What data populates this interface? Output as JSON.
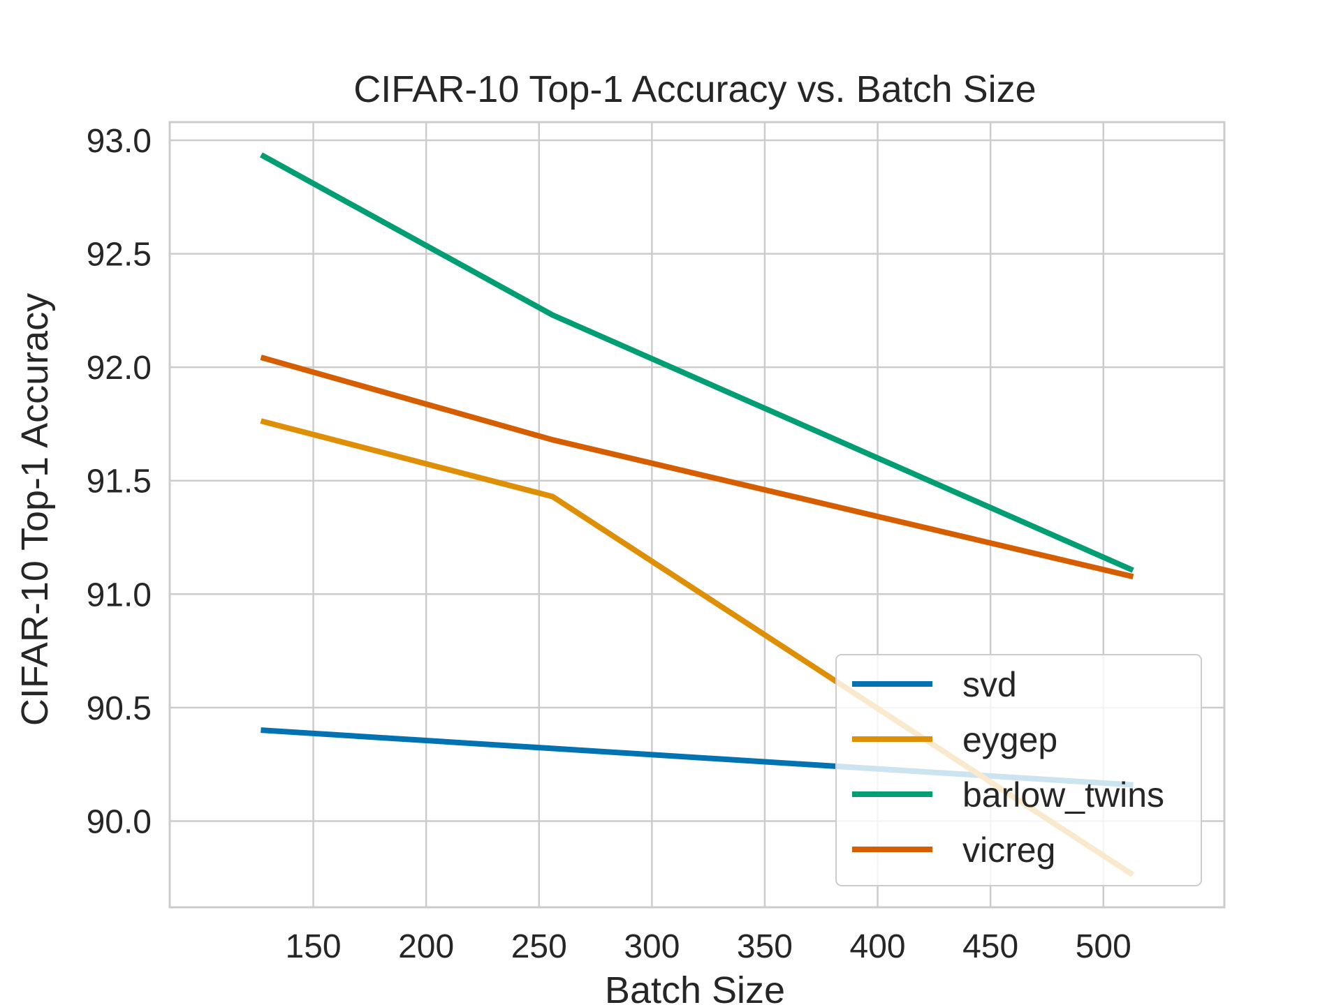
{
  "chart_data": {
    "type": "line",
    "title": "CIFAR-10 Top-1 Accuracy vs. Batch Size",
    "xlabel": "Batch Size",
    "ylabel": "CIFAR-10 Top-1 Accuracy",
    "x": [
      128,
      256,
      512
    ],
    "xlim": [
      86.4,
      553.6
    ],
    "ylim": [
      89.62,
      93.08
    ],
    "xticks": [
      150,
      200,
      250,
      300,
      350,
      400,
      450,
      500
    ],
    "yticks": [
      90.0,
      90.5,
      91.0,
      91.5,
      92.0,
      92.5,
      93.0
    ],
    "xtick_labels": [
      "150",
      "200",
      "250",
      "300",
      "350",
      "400",
      "450",
      "500"
    ],
    "ytick_labels": [
      "90.0",
      "90.5",
      "91.0",
      "91.5",
      "92.0",
      "92.5",
      "93.0"
    ],
    "grid": true,
    "legend_position": "lower-right",
    "series": [
      {
        "name": "svd",
        "color": "#0173b2",
        "values": [
          90.4,
          90.32,
          90.16
        ]
      },
      {
        "name": "eygep",
        "color": "#de8f05",
        "values": [
          91.76,
          91.43,
          89.77
        ]
      },
      {
        "name": "barlow_twins",
        "color": "#029e73",
        "values": [
          92.93,
          92.23,
          91.11
        ]
      },
      {
        "name": "vicreg",
        "color": "#d55e00",
        "values": [
          92.04,
          91.68,
          91.08
        ]
      }
    ]
  }
}
